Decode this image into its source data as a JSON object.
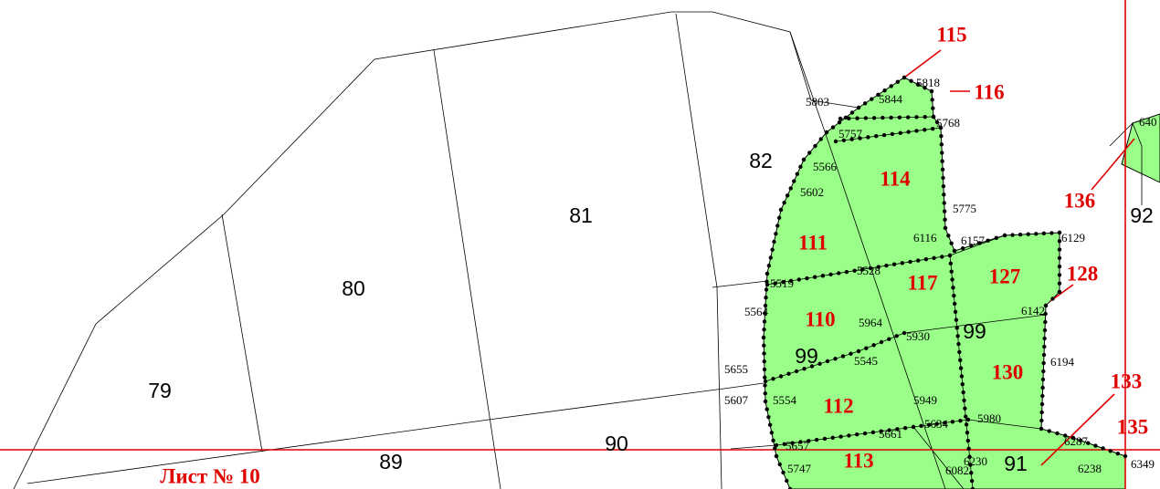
{
  "parcels": [
    "79",
    "80",
    "81",
    "82",
    "89",
    "90",
    "91",
    "92",
    "99",
    "99"
  ],
  "red_labels": [
    "115",
    "116",
    "114",
    "111",
    "117",
    "127",
    "128",
    "110",
    "112",
    "130",
    "113",
    "133",
    "135",
    "136"
  ],
  "sheet_label": "Лист № 10",
  "point_labels": [
    "5818",
    "5803",
    "5844",
    "5768",
    "5757",
    "5566",
    "5602",
    "5775",
    "6116",
    "6157",
    "6129",
    "5519",
    "5528",
    "5564",
    "5964",
    "6142",
    "5930",
    "5545",
    "5655",
    "6194",
    "5607",
    "5554",
    "5949",
    "5634",
    "5980",
    "5657",
    "5661",
    "6287",
    "6230",
    "5747",
    "6082",
    "6238",
    "6349",
    "640"
  ]
}
